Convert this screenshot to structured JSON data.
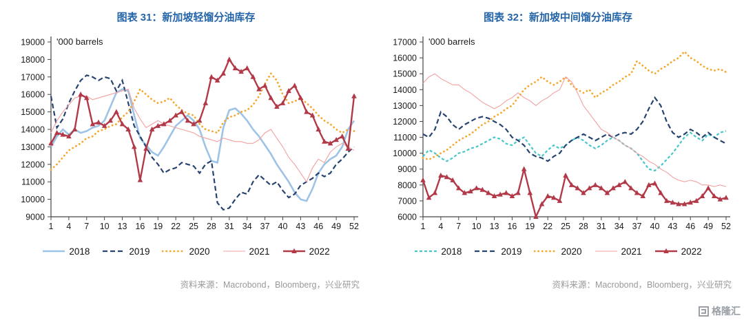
{
  "colors": {
    "title": "#2464a8",
    "source": "#999999",
    "axis": "#444444"
  },
  "footer": {
    "logo_text": "格隆汇"
  },
  "chart_data": [
    {
      "type": "line",
      "title": "图表 31：新加坡轻馏分油库存",
      "unit_label": "'000 barrels",
      "source": "资料来源：Macrobond，Bloomberg，兴业研究",
      "x_range": [
        1,
        52
      ],
      "x_ticks": [
        1,
        4,
        7,
        10,
        13,
        16,
        19,
        22,
        25,
        28,
        31,
        34,
        37,
        40,
        43,
        46,
        49,
        52
      ],
      "ylim": [
        9000,
        19000
      ],
      "y_tick_step": 1000,
      "legend_position": "bottom",
      "series": [
        {
          "name": "2018",
          "color": "#9dc3e6",
          "style": "solid",
          "width": 2.6,
          "values": [
            13000,
            13600,
            14000,
            13700,
            14000,
            13800,
            13900,
            14100,
            14200,
            14500,
            15300,
            16100,
            16300,
            16200,
            14800,
            13500,
            13100,
            12700,
            12500,
            13000,
            13600,
            14200,
            14500,
            14800,
            14500,
            14000,
            13000,
            12200,
            12100,
            14100,
            15100,
            15200,
            14900,
            14500,
            14000,
            13600,
            13100,
            12600,
            12000,
            11500,
            11000,
            10400,
            10000,
            9900,
            10600,
            11500,
            12000,
            12300,
            12500,
            13000,
            14000,
            14500
          ]
        },
        {
          "name": "2019",
          "color": "#27436f",
          "style": "dashed",
          "dash": "7 4",
          "width": 2.2,
          "values": [
            15900,
            14100,
            14600,
            15500,
            16200,
            16800,
            17100,
            17000,
            16800,
            17000,
            16900,
            16200,
            16800,
            15500,
            14200,
            13600,
            13000,
            12400,
            12000,
            11500,
            11700,
            11800,
            12100,
            12000,
            11900,
            11500,
            12000,
            12200,
            9800,
            9400,
            9500,
            10000,
            10400,
            10300,
            11000,
            11400,
            11100,
            10800,
            11000,
            10500,
            10100,
            10300,
            10800,
            11000,
            11200,
            11500,
            11300,
            11500,
            12000,
            12300,
            12700,
            13000
          ]
        },
        {
          "name": "2020",
          "color": "#f5a72e",
          "style": "dotted",
          "width": 2.8,
          "values": [
            11700,
            12000,
            12400,
            12800,
            13000,
            13200,
            13500,
            13600,
            13900,
            14000,
            14200,
            14300,
            14700,
            15000,
            15600,
            16300,
            16000,
            15700,
            15500,
            15600,
            15800,
            15400,
            15100,
            14900,
            14800,
            14300,
            14000,
            13900,
            13800,
            14400,
            14700,
            14800,
            15000,
            15100,
            15400,
            15900,
            16600,
            17200,
            16800,
            16000,
            15500,
            15600,
            15800,
            15500,
            15200,
            14800,
            14500,
            14300,
            14000,
            13800,
            14000,
            13900
          ]
        },
        {
          "name": "2021",
          "color": "#f2a0a0",
          "style": "solid",
          "width": 1.1,
          "values": [
            13800,
            14500,
            15000,
            15400,
            15800,
            15900,
            15900,
            15700,
            15800,
            15900,
            16000,
            16100,
            16200,
            16300,
            15200,
            14600,
            14100,
            14300,
            14500,
            14300,
            14200,
            14100,
            14000,
            13900,
            13800,
            13600,
            13500,
            13400,
            13300,
            13500,
            13400,
            13300,
            13300,
            13200,
            13200,
            13400,
            13800,
            14000,
            13500,
            13000,
            12400,
            12000,
            11500,
            11000,
            11800,
            12300,
            12100,
            12700,
            13000,
            13200,
            13000,
            12800
          ]
        },
        {
          "name": "2022",
          "color": "#b23a48",
          "style": "solid",
          "width": 2.4,
          "marker": "triangle",
          "values": [
            13200,
            13800,
            13700,
            13600,
            14000,
            16000,
            15800,
            14300,
            14400,
            14200,
            14500,
            15000,
            14300,
            14000,
            13000,
            11100,
            12900,
            14000,
            14200,
            14300,
            14500,
            14800,
            15000,
            14500,
            14300,
            14500,
            15500,
            17000,
            16800,
            17200,
            18000,
            17500,
            17300,
            17500,
            17000,
            16300,
            16500,
            15800,
            15300,
            15500,
            16200,
            16500,
            15800,
            15000,
            14800,
            14000,
            13300,
            13200,
            13400,
            13600,
            12900,
            15900
          ]
        }
      ]
    },
    {
      "type": "line",
      "title": "图表 32：新加坡中间馏分油库存",
      "unit_label": "'000 barrels",
      "source": "资料来源：Macrobond，Bloomberg，兴业研究",
      "x_range": [
        1,
        52
      ],
      "x_ticks": [
        1,
        4,
        7,
        10,
        13,
        16,
        19,
        22,
        25,
        28,
        31,
        34,
        37,
        40,
        43,
        46,
        49,
        52
      ],
      "ylim": [
        6000,
        17000
      ],
      "y_tick_step": 1000,
      "legend_position": "bottom",
      "series": [
        {
          "name": "2018",
          "color": "#45c6c8",
          "style": "dashed",
          "dash": "4 3",
          "width": 2.2,
          "values": [
            9800,
            10200,
            10000,
            9700,
            9500,
            9700,
            10000,
            10100,
            10300,
            10400,
            10600,
            10800,
            11000,
            10900,
            10600,
            10500,
            10800,
            11000,
            10500,
            10000,
            9800,
            10200,
            10500,
            10300,
            10500,
            10800,
            11000,
            10800,
            10500,
            10300,
            10500,
            10800,
            11000,
            10800,
            10500,
            10300,
            10000,
            9500,
            9000,
            8900,
            9200,
            9600,
            10000,
            10500,
            11000,
            11300,
            11000,
            10800,
            11200,
            11000,
            11300,
            11400
          ]
        },
        {
          "name": "2019",
          "color": "#27436f",
          "style": "dashed",
          "dash": "7 4",
          "width": 2.2,
          "values": [
            11200,
            11000,
            11500,
            12600,
            12300,
            11800,
            11500,
            11800,
            12000,
            12200,
            12300,
            12200,
            12000,
            11800,
            11500,
            11000,
            10800,
            10500,
            10000,
            9800,
            9700,
            9500,
            9800,
            10000,
            10500,
            10800,
            11000,
            11200,
            11000,
            10800,
            11000,
            11200,
            11000,
            11200,
            11300,
            11200,
            11500,
            12000,
            12800,
            13500,
            13000,
            12000,
            11300,
            11000,
            11200,
            11500,
            11300,
            11000,
            11300,
            11000,
            10800,
            10600
          ]
        },
        {
          "name": "2020",
          "color": "#f5a72e",
          "style": "dotted",
          "width": 2.8,
          "values": [
            9700,
            9600,
            9800,
            10000,
            10200,
            10500,
            10800,
            11000,
            11200,
            11500,
            11800,
            12000,
            12300,
            12500,
            12800,
            13000,
            13500,
            14000,
            14300,
            14500,
            14800,
            14500,
            14300,
            14500,
            14800,
            14300,
            14000,
            13800,
            14000,
            13500,
            13800,
            14000,
            14300,
            14500,
            14800,
            15000,
            15800,
            15500,
            15200,
            15000,
            15300,
            15500,
            15800,
            16000,
            16400,
            16000,
            15800,
            15500,
            15300,
            15200,
            15300,
            15100
          ]
        },
        {
          "name": "2021",
          "color": "#f2a0a0",
          "style": "solid",
          "width": 1.1,
          "values": [
            14400,
            14800,
            15000,
            14700,
            14500,
            14300,
            14300,
            14000,
            13800,
            13500,
            13200,
            13000,
            12800,
            13000,
            13300,
            13500,
            13800,
            13500,
            13300,
            13000,
            13300,
            13500,
            13800,
            14000,
            14800,
            14500,
            13800,
            13000,
            12500,
            12000,
            11500,
            11300,
            11000,
            10800,
            10500,
            10300,
            10000,
            9800,
            9500,
            9300,
            9000,
            8800,
            8500,
            8300,
            8200,
            8300,
            8200,
            8000,
            8000,
            7900,
            8000,
            7900
          ]
        },
        {
          "name": "2022",
          "color": "#b23a48",
          "style": "solid",
          "width": 2.4,
          "marker": "triangle",
          "values": [
            8300,
            7200,
            7500,
            8600,
            8500,
            8300,
            7800,
            7500,
            7600,
            7800,
            7700,
            7500,
            7300,
            7400,
            7500,
            7300,
            7500,
            9000,
            7500,
            6000,
            6800,
            7300,
            7200,
            7000,
            8600,
            8000,
            7800,
            7500,
            7800,
            8000,
            7800,
            7500,
            7800,
            8000,
            8200,
            7800,
            7500,
            7300,
            8000,
            8100,
            7500,
            7000,
            6900,
            6800,
            6800,
            6900,
            7000,
            7300,
            7800,
            7300,
            7100,
            7200
          ]
        }
      ]
    }
  ]
}
